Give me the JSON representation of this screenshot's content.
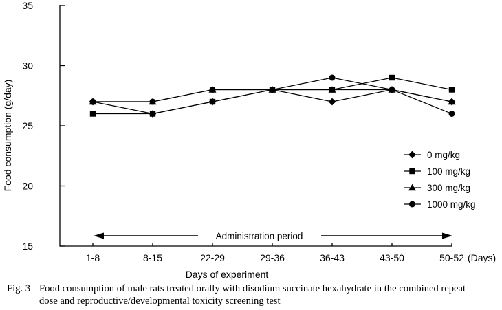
{
  "figure": {
    "caption_label": "Fig. 3",
    "caption_line1": "Food consumption of male rats treated orally with disodium succinate hexahydrate in the combined repeat",
    "caption_line2": "dose and reproductive/developmental toxicity screening test"
  },
  "chart_data": {
    "type": "line",
    "title": "",
    "xlabel": "Days of experiment",
    "ylabel": "Food consumption (g/day)",
    "x_unit_suffix": "(Days)",
    "categories": [
      "1-8",
      "8-15",
      "22-29",
      "29-36",
      "36-43",
      "43-50",
      "50-52"
    ],
    "yticks": [
      15,
      20,
      25,
      30,
      35
    ],
    "ylim": [
      15,
      35
    ],
    "grid": false,
    "legend_position": "right-middle",
    "annotation": "Administration period",
    "series": [
      {
        "name": "0 mg/kg",
        "marker": "diamond",
        "values": [
          27,
          26,
          27,
          28,
          27,
          28,
          27
        ]
      },
      {
        "name": "100 mg/kg",
        "marker": "square",
        "values": [
          26,
          26,
          27,
          28,
          28,
          29,
          28
        ]
      },
      {
        "name": "300 mg/kg",
        "marker": "triangle",
        "values": [
          27,
          27,
          28,
          28,
          28,
          28,
          27
        ]
      },
      {
        "name": "1000 mg/kg",
        "marker": "circle",
        "values": [
          27,
          27,
          28,
          28,
          29,
          28,
          26
        ]
      }
    ],
    "draw_order": [
      0,
      2,
      3,
      1
    ],
    "colors": {
      "line": "#000000",
      "background": "#ffffff"
    }
  }
}
